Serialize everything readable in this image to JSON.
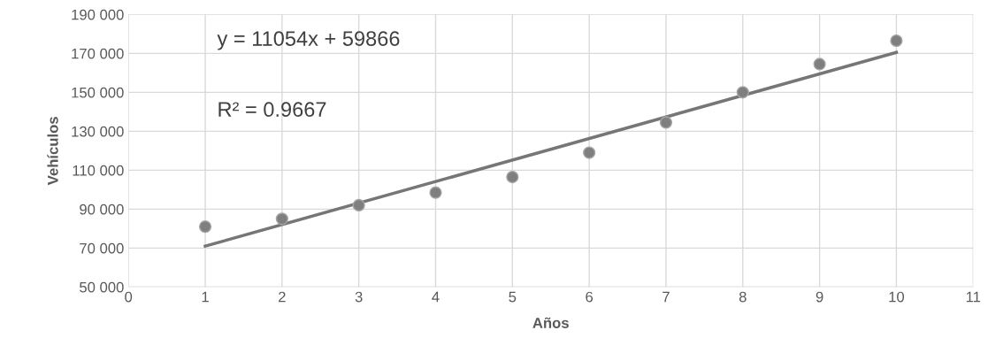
{
  "chart_data": {
    "type": "scatter",
    "xlabel": "Años",
    "ylabel": "Vehículos",
    "x": [
      1,
      2,
      3,
      4,
      5,
      6,
      7,
      8,
      9,
      10
    ],
    "series": [
      {
        "color": "#7f7f7f",
        "values": [
          81000,
          85000,
          92000,
          98500,
          106500,
          119000,
          134500,
          150000,
          164500,
          176500
        ],
        "marker": "circle"
      },
      {
        "type": "line",
        "color": "#767676",
        "x": [
          1,
          10
        ],
        "values": [
          71000,
          170500
        ],
        "marker": "none"
      }
    ],
    "annotations": [
      "y = 11054x + 59866",
      "R² = 0.9667"
    ],
    "xlim": [
      0,
      11
    ],
    "xticks": [
      0,
      1,
      2,
      3,
      4,
      5,
      6,
      7,
      8,
      9,
      10,
      11
    ],
    "ylim": [
      50000,
      190000
    ],
    "yticks": [
      {
        "value": 50000,
        "label": "50 000"
      },
      {
        "value": 70000,
        "label": "70 000"
      },
      {
        "value": 90000,
        "label": "90 000"
      },
      {
        "value": 110000,
        "label": "110 000"
      },
      {
        "value": 130000,
        "label": "130 000"
      },
      {
        "value": 150000,
        "label": "150 000"
      },
      {
        "value": 170000,
        "label": "170 000"
      },
      {
        "value": 190000,
        "label": "190 000"
      }
    ],
    "grid": true
  }
}
